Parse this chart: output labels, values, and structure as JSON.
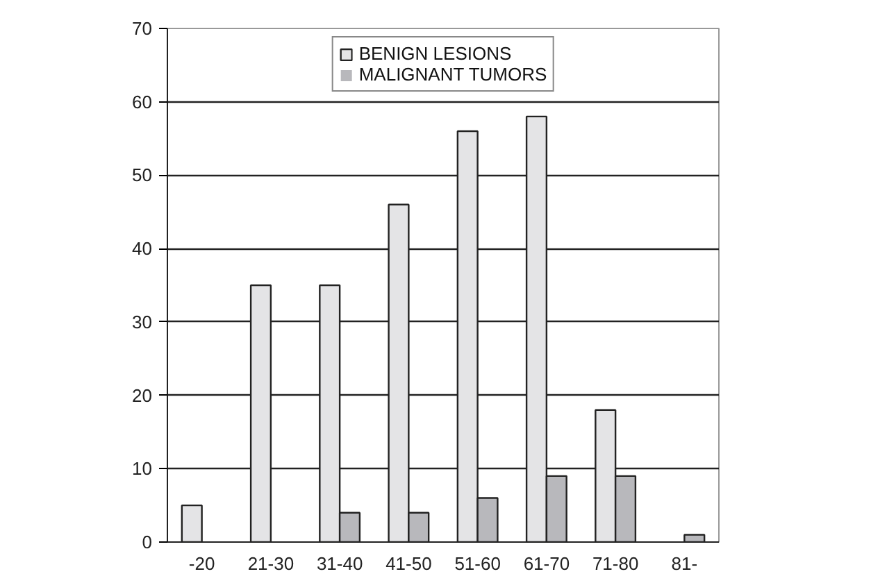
{
  "chart_data": {
    "type": "bar",
    "categories": [
      "-20",
      "21-30",
      "31-40",
      "41-50",
      "51-60",
      "61-70",
      "71-80",
      "81-"
    ],
    "series": [
      {
        "name": "BENIGN LESIONS",
        "color": "#e4e4e6",
        "values": [
          5,
          35,
          35,
          46,
          56,
          58,
          18,
          0
        ]
      },
      {
        "name": "MALIGNANT TUMORS",
        "color": "#b8b8bc",
        "values": [
          0,
          0,
          4,
          4,
          6,
          9,
          9,
          1
        ]
      }
    ],
    "ylim": [
      0,
      70
    ],
    "yticks": [
      0,
      10,
      20,
      30,
      40,
      50,
      60,
      70
    ],
    "grid": "y",
    "legend": "top"
  }
}
